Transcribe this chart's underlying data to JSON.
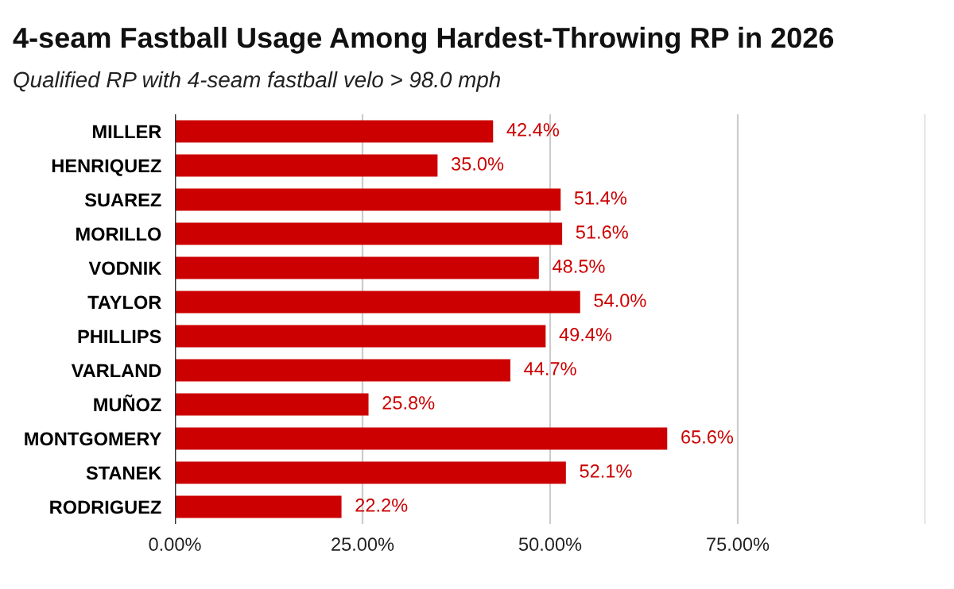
{
  "chart_data": {
    "type": "bar",
    "orientation": "horizontal",
    "title": "4-seam Fastball Usage Among Hardest-Throwing RP in 2026",
    "subtitle": "Qualified RP with 4-seam fastball velo > 98.0 mph",
    "categories": [
      "MILLER",
      "HENRIQUEZ",
      "SUAREZ",
      "MORILLO",
      "VODNIK",
      "TAYLOR",
      "PHILLIPS",
      "VARLAND",
      "MUÑOZ",
      "MONTGOMERY",
      "STANEK",
      "RODRIGUEZ"
    ],
    "values": [
      42.4,
      35.0,
      51.4,
      51.6,
      48.5,
      54.0,
      49.4,
      44.7,
      25.8,
      65.6,
      52.1,
      22.2
    ],
    "value_labels": [
      "42.4%",
      "35.0%",
      "51.4%",
      "51.6%",
      "48.5%",
      "54.0%",
      "49.4%",
      "44.7%",
      "25.8%",
      "65.6%",
      "52.1%",
      "22.2%"
    ],
    "color": "#cc0000",
    "xlim": [
      0,
      100
    ],
    "xticks": [
      {
        "value": 0,
        "label": "0.00%"
      },
      {
        "value": 25,
        "label": "25.00%"
      },
      {
        "value": 50,
        "label": "50.00%"
      },
      {
        "value": 75,
        "label": "75.00%"
      },
      {
        "value": 100,
        "label": null
      }
    ],
    "grid": "x"
  }
}
